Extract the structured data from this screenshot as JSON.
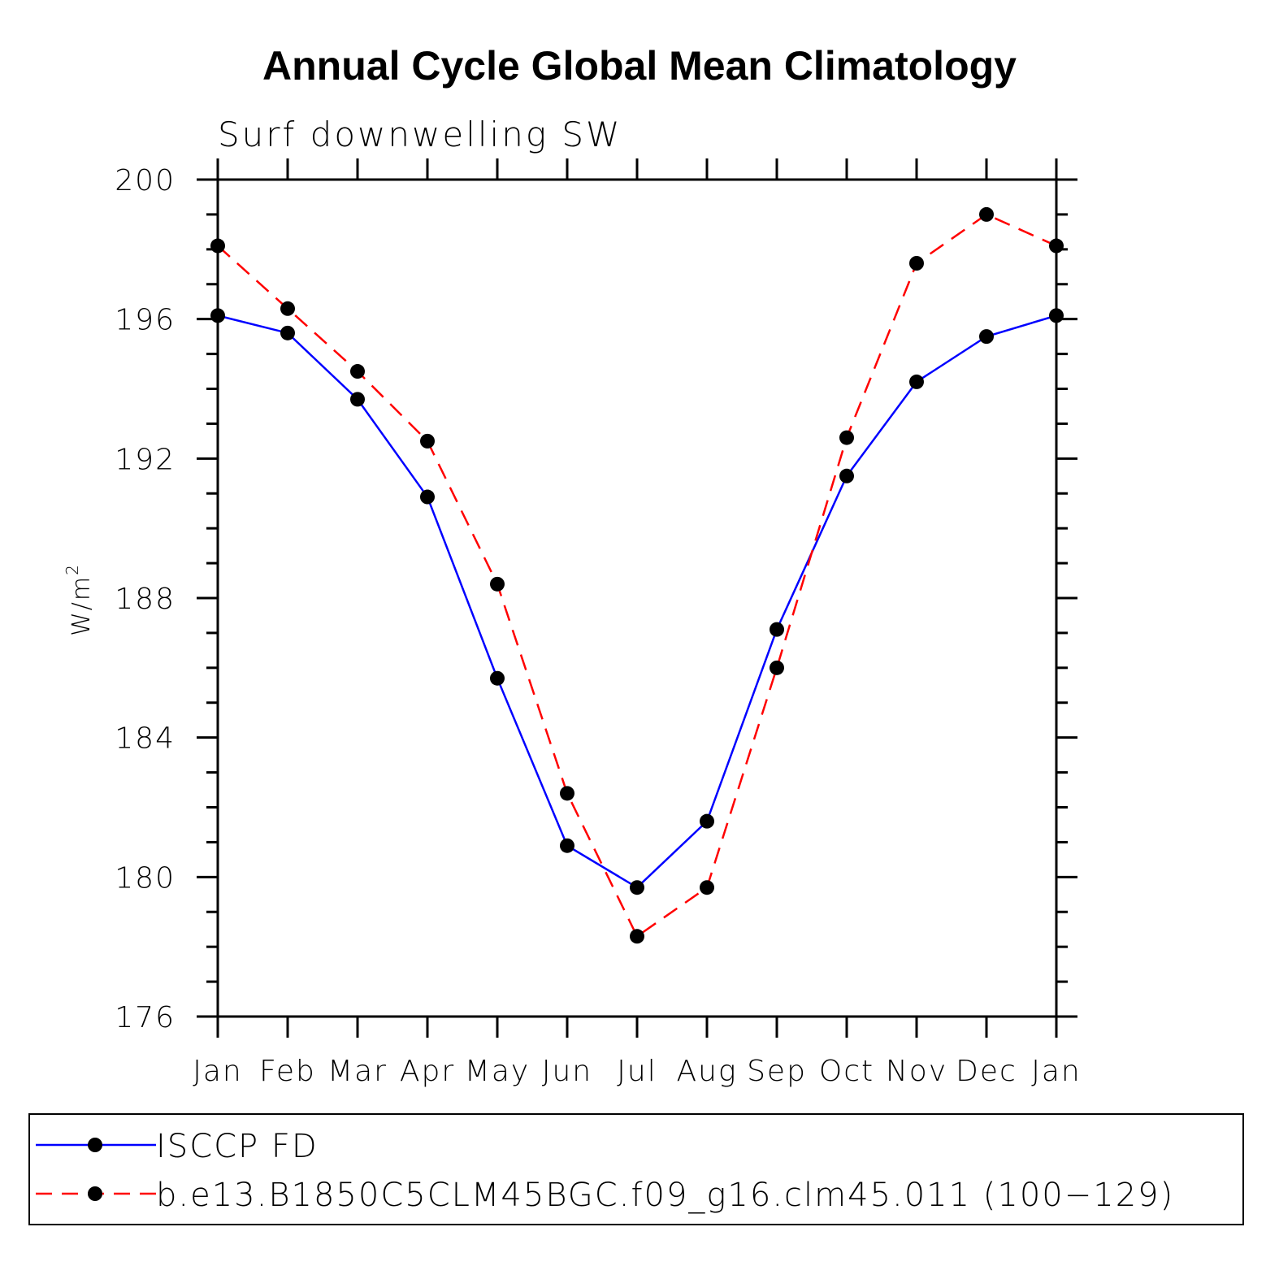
{
  "chart_data": {
    "type": "line",
    "title": "Annual Cycle Global Mean Climatology",
    "subtitle": "Surf downwelling SW",
    "ylabel": "W/m",
    "ylabel_superscript": "2",
    "xlabel": "",
    "categories": [
      "Jan",
      "Feb",
      "Mar",
      "Apr",
      "May",
      "Jun",
      "Jul",
      "Aug",
      "Sep",
      "Oct",
      "Nov",
      "Dec",
      "Jan"
    ],
    "ylim": [
      176,
      200
    ],
    "yticks": [
      176,
      180,
      184,
      188,
      192,
      196,
      200
    ],
    "yticks_labels": [
      "176",
      "180",
      "184",
      "188",
      "192",
      "196",
      "200"
    ],
    "series": [
      {
        "name": "ISCCP FD",
        "color": "#0000ff",
        "style": "solid",
        "values": [
          196.1,
          195.6,
          193.7,
          190.9,
          185.7,
          180.9,
          179.7,
          181.6,
          187.1,
          191.5,
          194.2,
          195.5,
          196.1
        ]
      },
      {
        "name": "b.e13.B1850C5CLM45BGC.f09_g16.clm45.011 (100−129)",
        "color": "#ff0000",
        "style": "dashed",
        "values": [
          198.1,
          196.3,
          194.5,
          192.5,
          188.4,
          182.4,
          178.3,
          179.7,
          186.0,
          192.6,
          197.6,
          199.0,
          198.1
        ]
      }
    ],
    "legend_position": "bottom",
    "grid": false
  }
}
